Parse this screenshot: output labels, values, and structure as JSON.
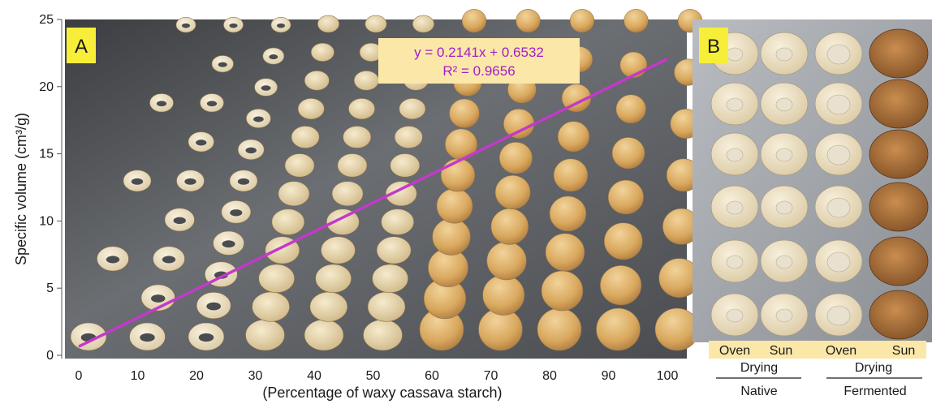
{
  "chart_data": {
    "type": "scatter",
    "panel_a": {
      "label": "A",
      "xlabel": "(Percentage of waxy cassava starch)",
      "ylabel": "Specific volume (cm³/g)",
      "xlim": [
        0,
        100
      ],
      "ylim": [
        0,
        25
      ],
      "x_ticks": [
        "0",
        "10",
        "20",
        "30",
        "40",
        "50",
        "60",
        "70",
        "80",
        "90",
        "100"
      ],
      "y_ticks": [
        "0",
        "5",
        "10",
        "15",
        "20",
        "25"
      ],
      "trendline": {
        "slope": 0.2141,
        "intercept": 0.6532,
        "x_range": [
          0,
          100
        ],
        "color": "#c23ac9",
        "equation": "y = 0.2141x + 0.6532",
        "r_squared": "R² = 0.9656"
      },
      "columns": [
        {
          "x": 0,
          "count": 5,
          "type": "ring"
        },
        {
          "x": 10,
          "count": 9,
          "type": "ring"
        },
        {
          "x": 20,
          "count": 11,
          "type": "ring"
        },
        {
          "x": 30,
          "count": 12,
          "type": "bun"
        },
        {
          "x": 40,
          "count": 12,
          "type": "bun"
        },
        {
          "x": 50,
          "count": 12,
          "type": "bun"
        },
        {
          "x": 60,
          "count": 11,
          "type": "puff"
        },
        {
          "x": 70,
          "count": 10,
          "type": "puff"
        },
        {
          "x": 80,
          "count": 9,
          "type": "puff"
        },
        {
          "x": 90,
          "count": 8,
          "type": "puff"
        },
        {
          "x": 100,
          "count": 7,
          "type": "puff"
        }
      ]
    },
    "panel_b": {
      "label": "B",
      "column_labels": [
        "Oven",
        "Sun",
        "Oven",
        "Sun"
      ],
      "group_labels": [
        "Drying",
        "Drying"
      ],
      "category_labels": [
        "Native",
        "Fermented"
      ]
    }
  }
}
